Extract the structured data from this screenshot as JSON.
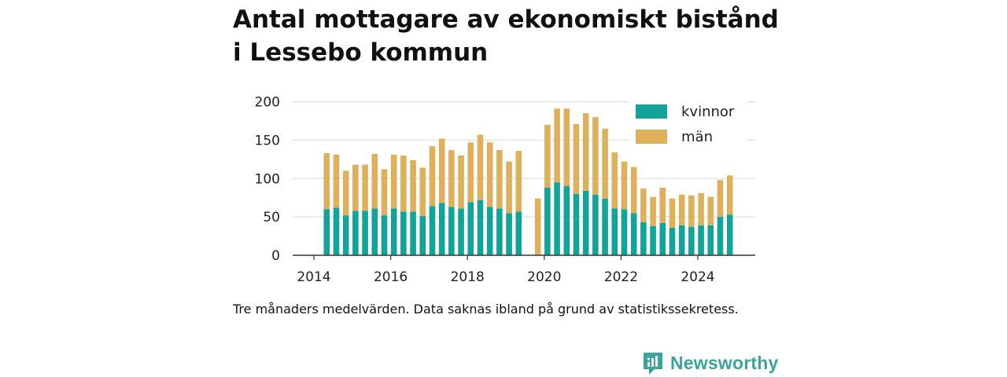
{
  "chart_data": {
    "type": "bar",
    "stacked": true,
    "title_lines": [
      "Antal mottagare av ekonomiskt bistånd",
      "i Lessebo kommun"
    ],
    "caption": "Tre månaders medelvärden. Data saknas ibland på grund av statistikssekretess.",
    "ylim": [
      0,
      200
    ],
    "yticks": [
      0,
      50,
      100,
      150,
      200
    ],
    "xticks": [
      "2014",
      "2016",
      "2018",
      "2020",
      "2022",
      "2024"
    ],
    "grid": true,
    "legend_position": "top-right",
    "series": [
      {
        "name": "kvinnor",
        "color": "#12a498",
        "values": [
          60,
          62,
          52,
          58,
          58,
          61,
          52,
          61,
          57,
          57,
          51,
          64,
          68,
          63,
          61,
          69,
          72,
          63,
          61,
          55,
          57,
          null,
          0,
          88,
          95,
          90,
          80,
          84,
          79,
          74,
          61,
          60,
          55,
          43,
          38,
          42,
          36,
          39,
          37,
          39,
          39,
          50,
          53
        ]
      },
      {
        "name": "män",
        "color": "#dfb05c",
        "values": [
          73,
          69,
          58,
          60,
          60,
          71,
          60,
          70,
          73,
          67,
          63,
          78,
          84,
          74,
          69,
          78,
          85,
          84,
          76,
          67,
          79,
          null,
          74,
          82,
          96,
          101,
          91,
          101,
          101,
          91,
          73,
          62,
          60,
          44,
          38,
          46,
          38,
          40,
          41,
          42,
          37,
          48,
          51
        ]
      }
    ],
    "periods": [
      "2014-05",
      "2014-08",
      "2014-11",
      "2015-02",
      "2015-05",
      "2015-08",
      "2015-11",
      "2016-02",
      "2016-05",
      "2016-08",
      "2016-11",
      "2017-02",
      "2017-05",
      "2017-08",
      "2017-11",
      "2018-02",
      "2018-05",
      "2018-08",
      "2018-11",
      "2019-02",
      "2019-05",
      "2019-08",
      "2019-11",
      "2020-02",
      "2020-05",
      "2020-08",
      "2020-11",
      "2021-02",
      "2021-05",
      "2021-08",
      "2021-11",
      "2022-02",
      "2022-05",
      "2022-08",
      "2022-11",
      "2023-02",
      "2023-05",
      "2023-08",
      "2023-11",
      "2024-02",
      "2024-05",
      "2024-08",
      "2024-11"
    ]
  },
  "brand": {
    "name": "Newsworthy",
    "color": "#3aa39b"
  }
}
